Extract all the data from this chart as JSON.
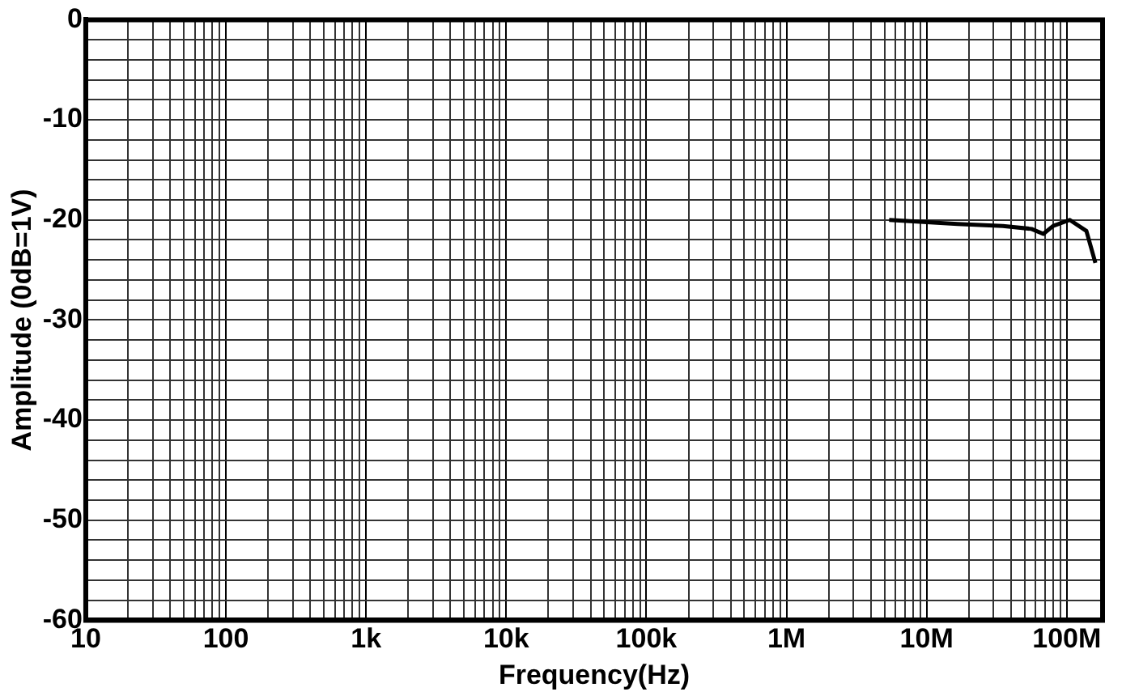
{
  "chart_data": {
    "type": "line",
    "xlabel": "Frequency(Hz)",
    "ylabel": "Amplitude (0dB=1V)",
    "log": "x",
    "grid": true,
    "legend": false,
    "marker": "none",
    "line_style": "solid",
    "xlim": [
      10,
      180000000
    ],
    "ylim": [
      -60,
      0
    ],
    "xticks": [
      {
        "value": 10,
        "label": "10"
      },
      {
        "value": 20,
        "label": null
      },
      {
        "value": 30,
        "label": null
      },
      {
        "value": 40,
        "label": null
      },
      {
        "value": 50,
        "label": null
      },
      {
        "value": 60,
        "label": null
      },
      {
        "value": 70,
        "label": null
      },
      {
        "value": 80,
        "label": null
      },
      {
        "value": 90,
        "label": null
      },
      {
        "value": 100,
        "label": "100"
      },
      {
        "value": 200,
        "label": null
      },
      {
        "value": 300,
        "label": null
      },
      {
        "value": 400,
        "label": null
      },
      {
        "value": 500,
        "label": null
      },
      {
        "value": 600,
        "label": null
      },
      {
        "value": 700,
        "label": null
      },
      {
        "value": 800,
        "label": null
      },
      {
        "value": 900,
        "label": null
      },
      {
        "value": 1000,
        "label": "1k"
      },
      {
        "value": 2000,
        "label": null
      },
      {
        "value": 3000,
        "label": null
      },
      {
        "value": 4000,
        "label": null
      },
      {
        "value": 5000,
        "label": null
      },
      {
        "value": 6000,
        "label": null
      },
      {
        "value": 7000,
        "label": null
      },
      {
        "value": 8000,
        "label": null
      },
      {
        "value": 9000,
        "label": null
      },
      {
        "value": 10000,
        "label": "10k"
      },
      {
        "value": 20000,
        "label": null
      },
      {
        "value": 30000,
        "label": null
      },
      {
        "value": 40000,
        "label": null
      },
      {
        "value": 50000,
        "label": null
      },
      {
        "value": 60000,
        "label": null
      },
      {
        "value": 70000,
        "label": null
      },
      {
        "value": 80000,
        "label": null
      },
      {
        "value": 90000,
        "label": null
      },
      {
        "value": 100000,
        "label": "100k"
      },
      {
        "value": 200000,
        "label": null
      },
      {
        "value": 300000,
        "label": null
      },
      {
        "value": 400000,
        "label": null
      },
      {
        "value": 500000,
        "label": null
      },
      {
        "value": 600000,
        "label": null
      },
      {
        "value": 700000,
        "label": null
      },
      {
        "value": 800000,
        "label": null
      },
      {
        "value": 900000,
        "label": null
      },
      {
        "value": 1000000,
        "label": "1M"
      },
      {
        "value": 2000000,
        "label": null
      },
      {
        "value": 3000000,
        "label": null
      },
      {
        "value": 4000000,
        "label": null
      },
      {
        "value": 5000000,
        "label": null
      },
      {
        "value": 6000000,
        "label": null
      },
      {
        "value": 7000000,
        "label": null
      },
      {
        "value": 8000000,
        "label": null
      },
      {
        "value": 9000000,
        "label": null
      },
      {
        "value": 10000000,
        "label": "10M"
      },
      {
        "value": 20000000,
        "label": null
      },
      {
        "value": 30000000,
        "label": null
      },
      {
        "value": 40000000,
        "label": null
      },
      {
        "value": 50000000,
        "label": null
      },
      {
        "value": 60000000,
        "label": null
      },
      {
        "value": 70000000,
        "label": null
      },
      {
        "value": 80000000,
        "label": null
      },
      {
        "value": 90000000,
        "label": null
      },
      {
        "value": 100000000,
        "label": "100M"
      }
    ],
    "yticks": [
      0,
      {
        "value": -2,
        "label": null
      },
      {
        "value": -4,
        "label": null
      },
      {
        "value": -6,
        "label": null
      },
      {
        "value": -8,
        "label": null
      },
      -10,
      {
        "value": -12,
        "label": null
      },
      {
        "value": -14,
        "label": null
      },
      {
        "value": -16,
        "label": null
      },
      {
        "value": -18,
        "label": null
      },
      -20,
      {
        "value": -22,
        "label": null
      },
      {
        "value": -24,
        "label": null
      },
      {
        "value": -26,
        "label": null
      },
      {
        "value": -28,
        "label": null
      },
      -30,
      {
        "value": -32,
        "label": null
      },
      {
        "value": -34,
        "label": null
      },
      {
        "value": -36,
        "label": null
      },
      {
        "value": -38,
        "label": null
      },
      -40,
      {
        "value": -42,
        "label": null
      },
      {
        "value": -44,
        "label": null
      },
      {
        "value": -46,
        "label": null
      },
      {
        "value": -48,
        "label": null
      },
      -50,
      {
        "value": -52,
        "label": null
      },
      {
        "value": -54,
        "label": null
      },
      {
        "value": -56,
        "label": null
      },
      {
        "value": -58,
        "label": null
      },
      -60
    ],
    "series": [
      {
        "color": "#000000",
        "x": [
          5400000,
          16600000,
          35000000,
          56000000,
          68000000,
          80000000,
          105000000,
          138000000,
          160000000
        ],
        "values": [
          -20.0,
          -20.4,
          -20.6,
          -20.9,
          -21.4,
          -20.6,
          -20.0,
          -21.1,
          -24.3
        ]
      }
    ]
  }
}
